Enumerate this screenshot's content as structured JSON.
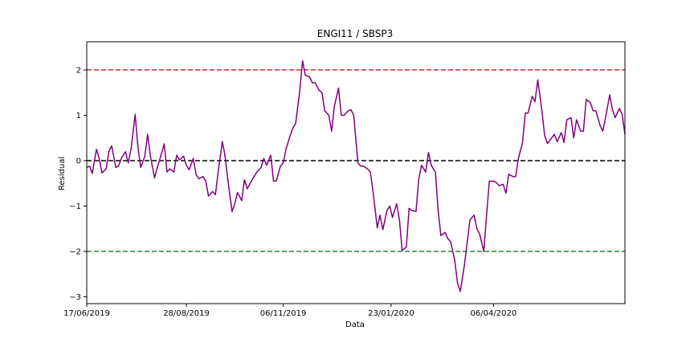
{
  "chart_data": {
    "type": "line",
    "title": "ENGI11 / SBSP3",
    "xlabel": "Data",
    "ylabel": "Residual",
    "x_start": "2019-06-17",
    "x_end": "2020-07-10",
    "x_tick_dates": [
      "2019-06-17",
      "2019-08-28",
      "2019-11-06",
      "2020-01-23",
      "2020-04-06"
    ],
    "x_tick_labels": [
      "17/06/2019",
      "28/08/2019",
      "06/11/2019",
      "23/01/2020",
      "06/04/2020"
    ],
    "ylim": [
      -3.15,
      2.62
    ],
    "y_ticks": [
      -3,
      -2,
      -1,
      0,
      1,
      2
    ],
    "y_tick_labels": [
      "−3",
      "−2",
      "−1",
      "0",
      "1",
      "2"
    ],
    "grid": false,
    "series_color": "#800080",
    "hlines": [
      {
        "y": 2,
        "color": "#d62728",
        "style": "dashed"
      },
      {
        "y": 0,
        "color": "#000000",
        "style": "dashed"
      },
      {
        "y": -2,
        "color": "#2a8a2a",
        "style": "dashed"
      }
    ],
    "series": [
      {
        "points": [
          [
            "2019-06-17",
            -0.15
          ],
          [
            "2019-06-19",
            -0.12
          ],
          [
            "2019-06-21",
            -0.28
          ],
          [
            "2019-06-24",
            0.25
          ],
          [
            "2019-06-26",
            0.05
          ],
          [
            "2019-06-28",
            -0.27
          ],
          [
            "2019-07-01",
            -0.18
          ],
          [
            "2019-07-03",
            0.2
          ],
          [
            "2019-07-05",
            0.33
          ],
          [
            "2019-07-08",
            -0.15
          ],
          [
            "2019-07-10",
            -0.12
          ],
          [
            "2019-07-12",
            0.05
          ],
          [
            "2019-07-15",
            0.2
          ],
          [
            "2019-07-17",
            -0.05
          ],
          [
            "2019-07-19",
            0.25
          ],
          [
            "2019-07-22",
            1.02
          ],
          [
            "2019-07-24",
            0.3
          ],
          [
            "2019-07-26",
            -0.15
          ],
          [
            "2019-07-29",
            0.1
          ],
          [
            "2019-07-31",
            0.58
          ],
          [
            "2019-08-02",
            0.1
          ],
          [
            "2019-08-05",
            -0.38
          ],
          [
            "2019-08-07",
            -0.15
          ],
          [
            "2019-08-09",
            0.05
          ],
          [
            "2019-08-12",
            0.37
          ],
          [
            "2019-08-14",
            -0.25
          ],
          [
            "2019-08-16",
            -0.18
          ],
          [
            "2019-08-19",
            -0.25
          ],
          [
            "2019-08-21",
            0.12
          ],
          [
            "2019-08-23",
            0.02
          ],
          [
            "2019-08-26",
            0.1
          ],
          [
            "2019-08-28",
            -0.1
          ],
          [
            "2019-08-30",
            -0.2
          ],
          [
            "2019-09-02",
            0.05
          ],
          [
            "2019-09-04",
            -0.3
          ],
          [
            "2019-09-06",
            -0.4
          ],
          [
            "2019-09-09",
            -0.35
          ],
          [
            "2019-09-11",
            -0.45
          ],
          [
            "2019-09-13",
            -0.78
          ],
          [
            "2019-09-16",
            -0.68
          ],
          [
            "2019-09-18",
            -0.75
          ],
          [
            "2019-09-20",
            -0.25
          ],
          [
            "2019-09-23",
            0.42
          ],
          [
            "2019-09-25",
            0.1
          ],
          [
            "2019-09-27",
            -0.42
          ],
          [
            "2019-09-30",
            -1.12
          ],
          [
            "2019-10-02",
            -0.95
          ],
          [
            "2019-10-04",
            -0.7
          ],
          [
            "2019-10-07",
            -0.88
          ],
          [
            "2019-10-09",
            -0.42
          ],
          [
            "2019-10-11",
            -0.62
          ],
          [
            "2019-10-14",
            -0.45
          ],
          [
            "2019-10-16",
            -0.35
          ],
          [
            "2019-10-18",
            -0.25
          ],
          [
            "2019-10-21",
            -0.15
          ],
          [
            "2019-10-23",
            0.05
          ],
          [
            "2019-10-25",
            -0.1
          ],
          [
            "2019-10-28",
            0.12
          ],
          [
            "2019-10-30",
            -0.45
          ],
          [
            "2019-11-01",
            -0.45
          ],
          [
            "2019-11-04",
            -0.12
          ],
          [
            "2019-11-06",
            -0.05
          ],
          [
            "2019-11-08",
            0.25
          ],
          [
            "2019-11-11",
            0.55
          ],
          [
            "2019-11-13",
            0.72
          ],
          [
            "2019-11-15",
            0.82
          ],
          [
            "2019-11-18",
            1.55
          ],
          [
            "2019-11-20",
            2.2
          ],
          [
            "2019-11-22",
            1.88
          ],
          [
            "2019-11-25",
            1.85
          ],
          [
            "2019-11-27",
            1.72
          ],
          [
            "2019-11-29",
            1.72
          ],
          [
            "2019-12-02",
            1.55
          ],
          [
            "2019-12-04",
            1.5
          ],
          [
            "2019-12-06",
            1.1
          ],
          [
            "2019-12-09",
            1.0
          ],
          [
            "2019-12-11",
            0.65
          ],
          [
            "2019-12-13",
            1.2
          ],
          [
            "2019-12-16",
            1.6
          ],
          [
            "2019-12-18",
            1.0
          ],
          [
            "2019-12-20",
            1.0
          ],
          [
            "2019-12-23",
            1.1
          ],
          [
            "2019-12-25",
            1.12
          ],
          [
            "2019-12-27",
            1.0
          ],
          [
            "2019-12-30",
            -0.05
          ],
          [
            "2020-01-01",
            -0.12
          ],
          [
            "2020-01-03",
            -0.12
          ],
          [
            "2020-01-06",
            -0.18
          ],
          [
            "2020-01-08",
            -0.25
          ],
          [
            "2020-01-10",
            -0.7
          ],
          [
            "2020-01-13",
            -1.48
          ],
          [
            "2020-01-15",
            -1.2
          ],
          [
            "2020-01-17",
            -1.52
          ],
          [
            "2020-01-20",
            -1.1
          ],
          [
            "2020-01-22",
            -1.0
          ],
          [
            "2020-01-24",
            -1.25
          ],
          [
            "2020-01-27",
            -0.95
          ],
          [
            "2020-01-29",
            -1.3
          ],
          [
            "2020-01-31",
            -1.98
          ],
          [
            "2020-02-03",
            -1.9
          ],
          [
            "2020-02-05",
            -1.05
          ],
          [
            "2020-02-07",
            -1.1
          ],
          [
            "2020-02-10",
            -1.12
          ],
          [
            "2020-02-12",
            -0.4
          ],
          [
            "2020-02-14",
            -0.1
          ],
          [
            "2020-02-17",
            -0.25
          ],
          [
            "2020-02-19",
            0.18
          ],
          [
            "2020-02-21",
            -0.1
          ],
          [
            "2020-02-24",
            -0.25
          ],
          [
            "2020-02-26",
            -1.1
          ],
          [
            "2020-02-28",
            -1.65
          ],
          [
            "2020-03-02",
            -1.58
          ],
          [
            "2020-03-04",
            -1.72
          ],
          [
            "2020-03-06",
            -1.78
          ],
          [
            "2020-03-09",
            -2.2
          ],
          [
            "2020-03-11",
            -2.7
          ],
          [
            "2020-03-13",
            -2.88
          ],
          [
            "2020-03-16",
            -2.3
          ],
          [
            "2020-03-18",
            -1.8
          ],
          [
            "2020-03-20",
            -1.3
          ],
          [
            "2020-03-23",
            -1.2
          ],
          [
            "2020-03-25",
            -1.5
          ],
          [
            "2020-03-27",
            -1.62
          ],
          [
            "2020-03-30",
            -2.0
          ],
          [
            "2020-04-01",
            -1.2
          ],
          [
            "2020-04-03",
            -0.45
          ],
          [
            "2020-04-06",
            -0.45
          ],
          [
            "2020-04-08",
            -0.48
          ],
          [
            "2020-04-10",
            -0.55
          ],
          [
            "2020-04-13",
            -0.52
          ],
          [
            "2020-04-15",
            -0.72
          ],
          [
            "2020-04-17",
            -0.3
          ],
          [
            "2020-04-20",
            -0.35
          ],
          [
            "2020-04-22",
            -0.35
          ],
          [
            "2020-04-24",
            0.05
          ],
          [
            "2020-04-27",
            0.4
          ],
          [
            "2020-04-29",
            1.05
          ],
          [
            "2020-05-01",
            1.05
          ],
          [
            "2020-05-04",
            1.42
          ],
          [
            "2020-05-06",
            1.3
          ],
          [
            "2020-05-08",
            1.78
          ],
          [
            "2020-05-11",
            1.1
          ],
          [
            "2020-05-13",
            0.55
          ],
          [
            "2020-05-15",
            0.38
          ],
          [
            "2020-05-18",
            0.5
          ],
          [
            "2020-05-20",
            0.58
          ],
          [
            "2020-05-22",
            0.42
          ],
          [
            "2020-05-25",
            0.62
          ],
          [
            "2020-05-27",
            0.4
          ],
          [
            "2020-05-29",
            0.9
          ],
          [
            "2020-06-01",
            0.95
          ],
          [
            "2020-06-03",
            0.5
          ],
          [
            "2020-06-05",
            0.9
          ],
          [
            "2020-06-08",
            0.65
          ],
          [
            "2020-06-10",
            0.65
          ],
          [
            "2020-06-12",
            1.35
          ],
          [
            "2020-06-15",
            1.28
          ],
          [
            "2020-06-17",
            1.1
          ],
          [
            "2020-06-19",
            1.1
          ],
          [
            "2020-06-22",
            0.78
          ],
          [
            "2020-06-24",
            0.65
          ],
          [
            "2020-06-26",
            0.95
          ],
          [
            "2020-06-29",
            1.45
          ],
          [
            "2020-07-01",
            1.12
          ],
          [
            "2020-07-03",
            0.95
          ],
          [
            "2020-07-06",
            1.15
          ],
          [
            "2020-07-08",
            1.02
          ],
          [
            "2020-07-10",
            0.58
          ]
        ]
      }
    ]
  }
}
